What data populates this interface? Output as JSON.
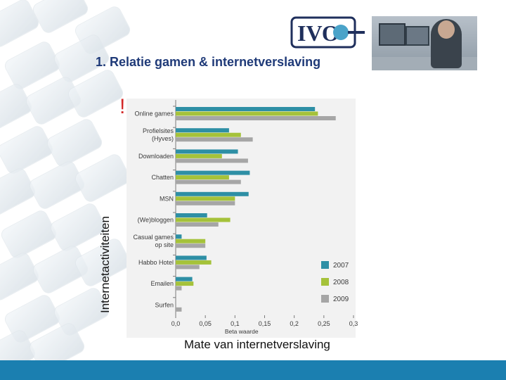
{
  "logo": {
    "text": "IVO"
  },
  "slide": {
    "title": "1. Relatie gamen & internetverslaving"
  },
  "exclamation": "!",
  "outer_labels": {
    "y": "Internetactiviteiten",
    "x": "Mate van internetverslaving"
  },
  "colors": {
    "s2007": "#2e8fa5",
    "s2008": "#a5c23a",
    "s2009": "#a6a6a6",
    "footer": "#1b7fb0",
    "title": "#1f3a78"
  },
  "chart_data": {
    "type": "bar",
    "orientation": "horizontal",
    "categories": [
      "Online games",
      "Profielsites\n(Hyves)",
      "Downloaden",
      "Chatten",
      "MSN",
      "(We)bloggen",
      "Casual games\nop site",
      "Habbo Hotel",
      "Emailen",
      "Surfen"
    ],
    "series": [
      {
        "name": "2007",
        "values": [
          0.235,
          0.09,
          0.105,
          0.125,
          0.123,
          0.053,
          0.01,
          0.052,
          0.028,
          null
        ]
      },
      {
        "name": "2008",
        "values": [
          0.24,
          0.11,
          0.078,
          0.09,
          0.1,
          0.092,
          0.05,
          0.06,
          0.03,
          null
        ]
      },
      {
        "name": "2009",
        "values": [
          0.27,
          0.13,
          0.122,
          0.11,
          0.1,
          0.072,
          0.05,
          0.04,
          0.01,
          0.01
        ]
      }
    ],
    "xlabel": "Beta waarde",
    "xlim": [
      0,
      0.3
    ],
    "xticks": [
      "0,0",
      "0,05",
      "0,1",
      "0,15",
      "0,2",
      "0,25",
      "0,3"
    ],
    "legend": {
      "position": "bottom-right"
    },
    "grid": false
  }
}
